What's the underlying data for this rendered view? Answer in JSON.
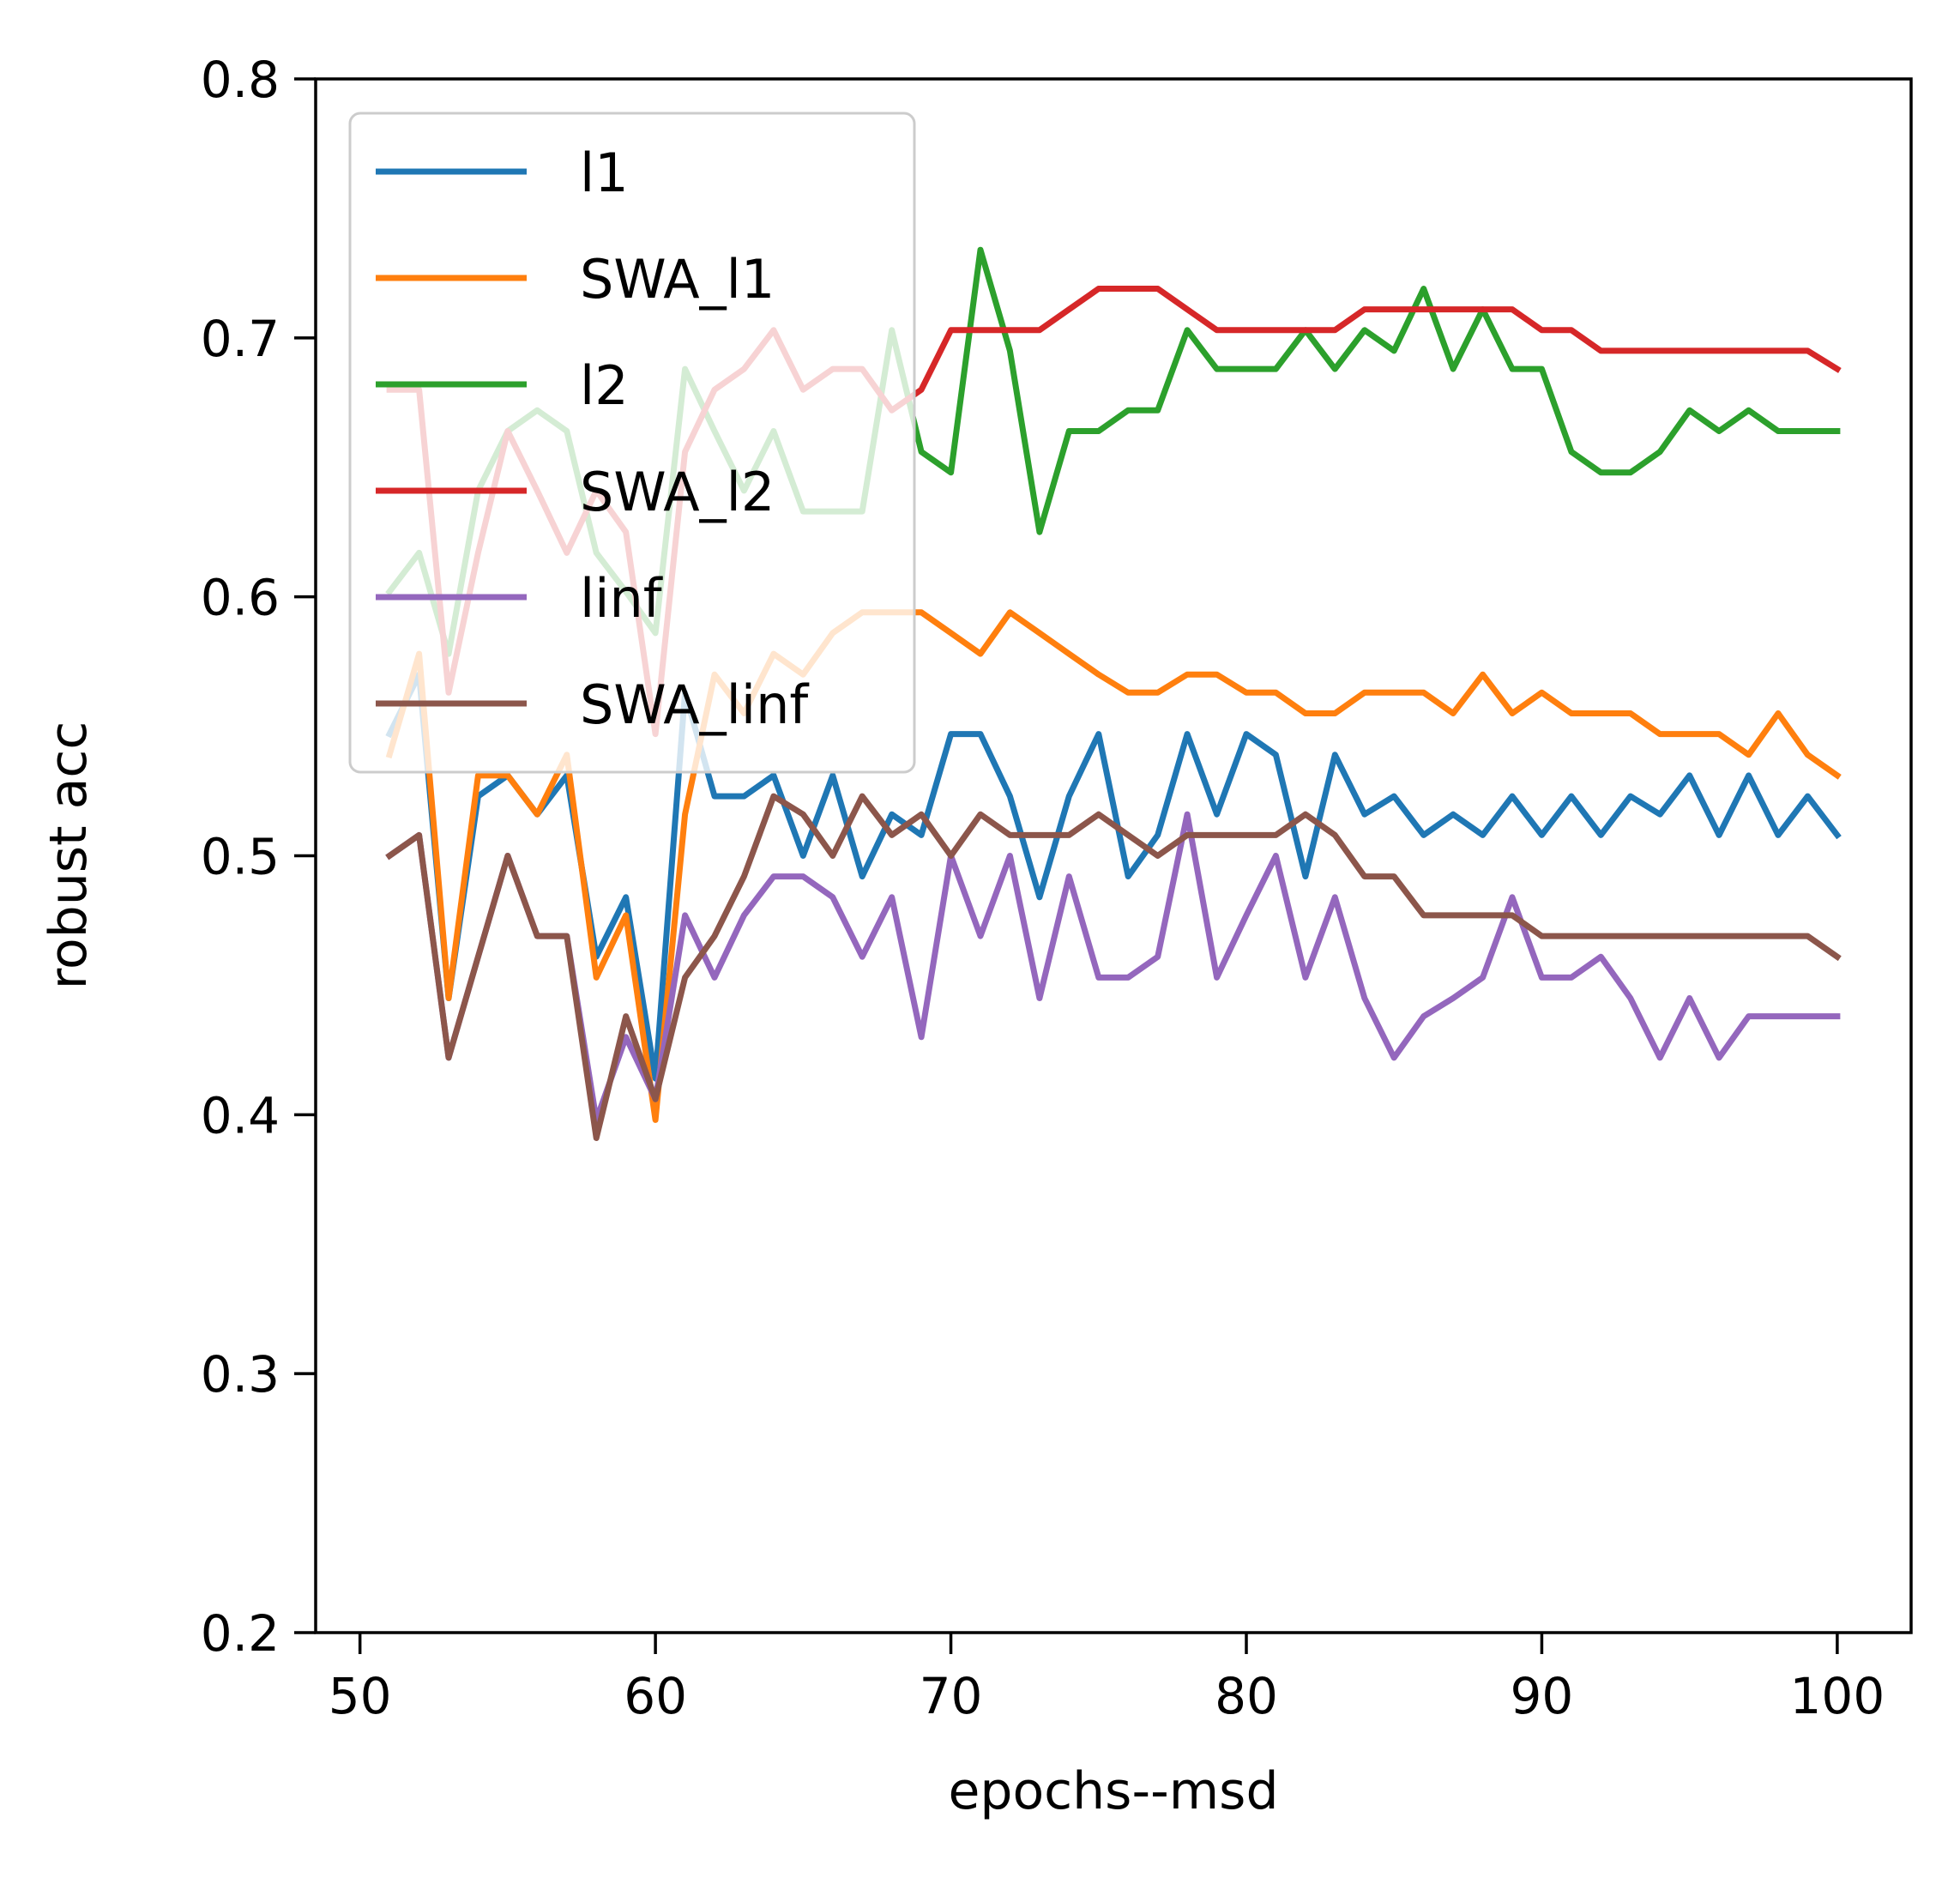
{
  "chart_data": {
    "type": "line",
    "xlabel": "epochs--msd",
    "ylabel": "robust acc",
    "xlim": [
      48.5,
      102.5
    ],
    "ylim": [
      0.2,
      0.8
    ],
    "xticks": [
      50,
      60,
      70,
      80,
      90,
      100
    ],
    "yticks": [
      0.2,
      0.3,
      0.4,
      0.5,
      0.6,
      0.7,
      0.8
    ],
    "xtick_labels": [
      "50",
      "60",
      "70",
      "80",
      "90",
      "100"
    ],
    "ytick_labels": [
      "0.2",
      "0.3",
      "0.4",
      "0.5",
      "0.6",
      "0.7",
      "0.8"
    ],
    "legend_position": "upper-left",
    "grid": false,
    "x": [
      51,
      52,
      53,
      54,
      55,
      56,
      57,
      58,
      59,
      60,
      61,
      62,
      63,
      64,
      65,
      66,
      67,
      68,
      69,
      70,
      71,
      72,
      73,
      74,
      75,
      76,
      77,
      78,
      79,
      80,
      81,
      82,
      83,
      84,
      85,
      86,
      87,
      88,
      89,
      90,
      91,
      92,
      93,
      94,
      95,
      96,
      97,
      98,
      99,
      100
    ],
    "series": [
      {
        "name": "l1",
        "color": "#1f77b4",
        "values": [
          0.547,
          0.57,
          0.445,
          0.523,
          0.531,
          0.516,
          0.531,
          0.461,
          0.484,
          0.414,
          0.563,
          0.523,
          0.523,
          0.531,
          0.5,
          0.531,
          0.492,
          0.516,
          0.508,
          0.547,
          0.547,
          0.523,
          0.484,
          0.523,
          0.547,
          0.492,
          0.508,
          0.547,
          0.516,
          0.547,
          0.539,
          0.492,
          0.539,
          0.516,
          0.523,
          0.508,
          0.516,
          0.508,
          0.523,
          0.508,
          0.523,
          0.508,
          0.523,
          0.516,
          0.531,
          0.508,
          0.531,
          0.508,
          0.523,
          0.508
        ]
      },
      {
        "name": "SWA_l1",
        "color": "#ff7f0e",
        "values": [
          0.539,
          0.578,
          0.445,
          0.531,
          0.531,
          0.516,
          0.539,
          0.453,
          0.477,
          0.398,
          0.516,
          0.57,
          0.555,
          0.578,
          0.57,
          0.586,
          0.594,
          0.594,
          0.594,
          0.586,
          0.578,
          0.594,
          0.586,
          0.578,
          0.57,
          0.563,
          0.563,
          0.57,
          0.57,
          0.563,
          0.563,
          0.555,
          0.555,
          0.563,
          0.563,
          0.563,
          0.555,
          0.57,
          0.555,
          0.563,
          0.555,
          0.555,
          0.555,
          0.547,
          0.547,
          0.547,
          0.539,
          0.555,
          0.539,
          0.531
        ]
      },
      {
        "name": "l2",
        "color": "#2ca02c",
        "values": [
          0.602,
          0.617,
          0.578,
          0.641,
          0.664,
          0.672,
          0.664,
          0.617,
          0.602,
          0.586,
          0.688,
          0.664,
          0.641,
          0.664,
          0.633,
          0.633,
          0.633,
          0.703,
          0.656,
          0.648,
          0.734,
          0.695,
          0.625,
          0.664,
          0.664,
          0.672,
          0.672,
          0.703,
          0.688,
          0.688,
          0.688,
          0.703,
          0.688,
          0.703,
          0.695,
          0.719,
          0.688,
          0.711,
          0.688,
          0.688,
          0.656,
          0.648,
          0.648,
          0.656,
          0.672,
          0.664,
          0.672,
          0.664,
          0.664,
          0.664
        ]
      },
      {
        "name": "SWA_l2",
        "color": "#d62728",
        "values": [
          0.68,
          0.68,
          0.563,
          0.617,
          0.664,
          0.641,
          0.617,
          0.641,
          0.625,
          0.547,
          0.656,
          0.68,
          0.688,
          0.703,
          0.68,
          0.688,
          0.688,
          0.672,
          0.68,
          0.703,
          0.703,
          0.703,
          0.703,
          0.711,
          0.719,
          0.719,
          0.719,
          0.711,
          0.703,
          0.703,
          0.703,
          0.703,
          0.703,
          0.711,
          0.711,
          0.711,
          0.711,
          0.711,
          0.711,
          0.703,
          0.703,
          0.695,
          0.695,
          0.695,
          0.695,
          0.695,
          0.695,
          0.695,
          0.695,
          0.688
        ]
      },
      {
        "name": "linf",
        "color": "#9467bd",
        "values": [
          0.5,
          0.508,
          0.422,
          0.461,
          0.5,
          0.469,
          0.469,
          0.398,
          0.43,
          0.406,
          0.477,
          0.453,
          0.477,
          0.492,
          0.492,
          0.484,
          0.461,
          0.484,
          0.43,
          0.5,
          0.469,
          0.5,
          0.445,
          0.492,
          0.453,
          0.453,
          0.461,
          0.516,
          0.453,
          0.477,
          0.5,
          0.453,
          0.484,
          0.445,
          0.422,
          0.438,
          0.445,
          0.453,
          0.484,
          0.453,
          0.453,
          0.461,
          0.445,
          0.422,
          0.445,
          0.422,
          0.438,
          0.438,
          0.438,
          0.438
        ]
      },
      {
        "name": "SWA_linf",
        "color": "#8c564b",
        "values": [
          0.5,
          0.508,
          0.422,
          0.461,
          0.5,
          0.469,
          0.469,
          0.391,
          0.438,
          0.406,
          0.453,
          0.469,
          0.492,
          0.523,
          0.516,
          0.5,
          0.523,
          0.508,
          0.516,
          0.5,
          0.516,
          0.508,
          0.508,
          0.508,
          0.516,
          0.508,
          0.5,
          0.508,
          0.508,
          0.508,
          0.508,
          0.516,
          0.508,
          0.492,
          0.492,
          0.477,
          0.477,
          0.477,
          0.477,
          0.469,
          0.469,
          0.469,
          0.469,
          0.469,
          0.469,
          0.469,
          0.469,
          0.469,
          0.469,
          0.461
        ]
      }
    ]
  }
}
